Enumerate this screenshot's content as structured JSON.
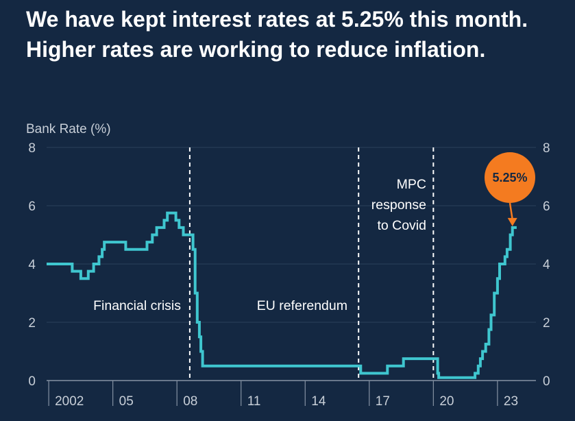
{
  "headline": "We have kept interest rates at 5.25% this month. Higher rates are working to reduce inflation.",
  "chart_data": {
    "type": "line",
    "step": true,
    "ylabel": "Bank Rate (%)",
    "ylim": [
      0,
      8
    ],
    "yticks": [
      0,
      2,
      4,
      6,
      8
    ],
    "xlim": [
      2001.9,
      2024.8
    ],
    "x_ticks": [
      {
        "label": "2002",
        "x": 2002
      },
      {
        "label": "05",
        "x": 2005
      },
      {
        "label": "08",
        "x": 2008
      },
      {
        "label": "11",
        "x": 2011
      },
      {
        "label": "14",
        "x": 2014
      },
      {
        "label": "17",
        "x": 2017
      },
      {
        "label": "20",
        "x": 2020
      },
      {
        "label": "23",
        "x": 2023
      }
    ],
    "series": [
      {
        "color": "#3fc6cf",
        "points": [
          [
            2001.9,
            4.0
          ],
          [
            2003.1,
            3.75
          ],
          [
            2003.5,
            3.5
          ],
          [
            2003.85,
            3.75
          ],
          [
            2004.1,
            4.0
          ],
          [
            2004.35,
            4.25
          ],
          [
            2004.5,
            4.5
          ],
          [
            2004.6,
            4.75
          ],
          [
            2005.6,
            4.5
          ],
          [
            2006.6,
            4.75
          ],
          [
            2006.85,
            5.0
          ],
          [
            2007.05,
            5.25
          ],
          [
            2007.4,
            5.5
          ],
          [
            2007.55,
            5.75
          ],
          [
            2007.95,
            5.5
          ],
          [
            2008.1,
            5.25
          ],
          [
            2008.3,
            5.0
          ],
          [
            2008.75,
            4.5
          ],
          [
            2008.85,
            3.0
          ],
          [
            2008.95,
            2.0
          ],
          [
            2009.05,
            1.5
          ],
          [
            2009.12,
            1.0
          ],
          [
            2009.2,
            0.5
          ],
          [
            2016.6,
            0.25
          ],
          [
            2017.85,
            0.5
          ],
          [
            2018.6,
            0.75
          ],
          [
            2020.2,
            0.25
          ],
          [
            2020.25,
            0.1
          ],
          [
            2021.95,
            0.25
          ],
          [
            2022.1,
            0.5
          ],
          [
            2022.2,
            0.75
          ],
          [
            2022.3,
            1.0
          ],
          [
            2022.45,
            1.25
          ],
          [
            2022.6,
            1.75
          ],
          [
            2022.7,
            2.25
          ],
          [
            2022.85,
            3.0
          ],
          [
            2023.0,
            3.5
          ],
          [
            2023.1,
            4.0
          ],
          [
            2023.35,
            4.25
          ],
          [
            2023.45,
            4.5
          ],
          [
            2023.6,
            5.0
          ],
          [
            2023.7,
            5.25
          ],
          [
            2023.9,
            5.25
          ]
        ]
      }
    ],
    "events": [
      {
        "label": "Financial crisis",
        "x": 2008.6
      },
      {
        "label": "EU referendum",
        "x": 2016.5
      },
      {
        "label": "MPC response to Covid",
        "x": 2020.0
      }
    ],
    "callout": {
      "label": "5.25%",
      "x": 2023.7,
      "y": 5.25,
      "color": "#f47b20"
    }
  },
  "annotations": {
    "financial_crisis": "Financial crisis",
    "eu_referendum": "EU referendum",
    "covid_line1": "MPC",
    "covid_line2": "response",
    "covid_line3": "to Covid"
  }
}
